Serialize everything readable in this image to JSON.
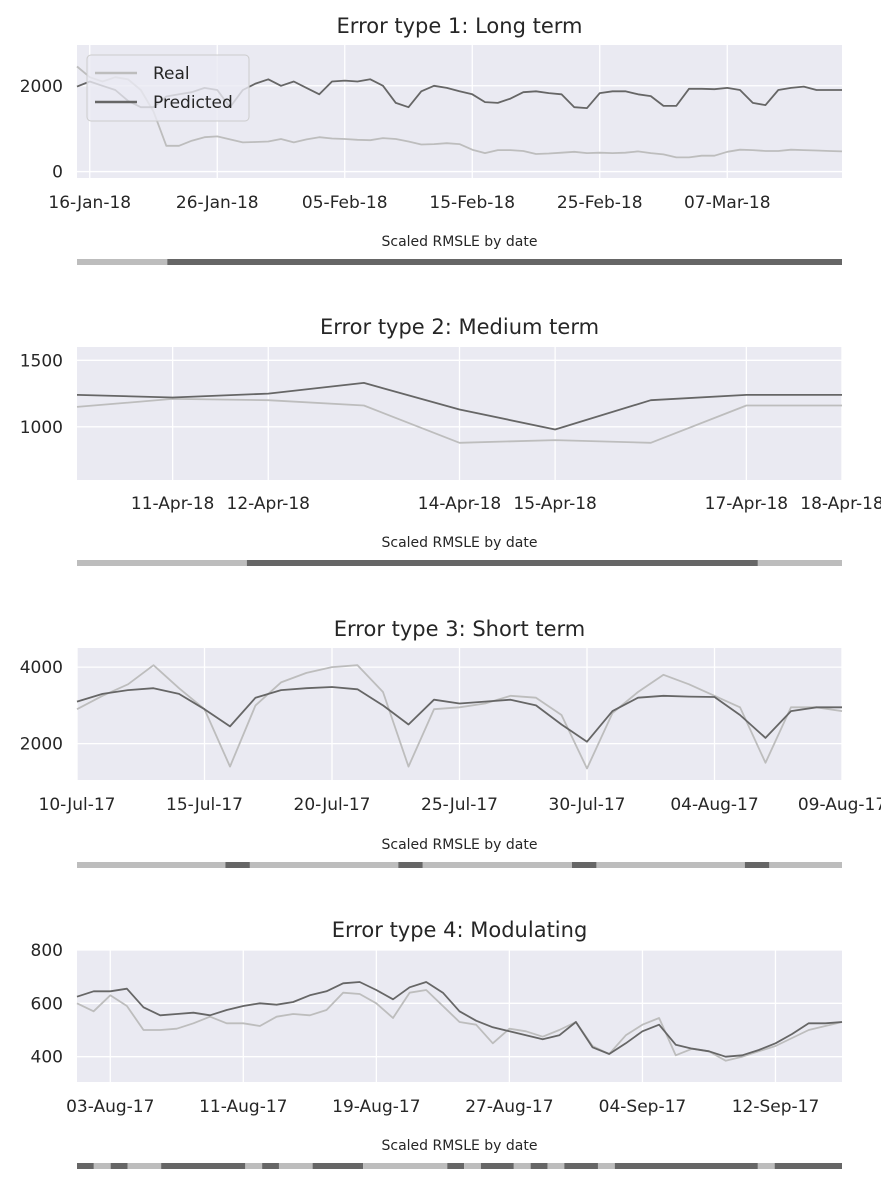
{
  "colors": {
    "axes_bg": "#EAEAF2",
    "grid": "#FFFFFF",
    "real": "#BDBDBD",
    "predicted": "#666666",
    "text": "#262626"
  },
  "strip_label": "Scaled RMSLE by date",
  "chart_data": [
    {
      "type": "line",
      "title": "Error type 1: Long term",
      "xlabel": "",
      "ylabel": "",
      "xlim": [
        "2018-01-15",
        "2018-03-16"
      ],
      "ylim": [
        -150,
        2950
      ],
      "grid": true,
      "legend": {
        "position": "top-left",
        "entries": [
          "Real",
          "Predicted"
        ]
      },
      "xticks": [
        {
          "x": "2018-01-16",
          "label": "16-Jan-18"
        },
        {
          "x": "2018-01-26",
          "label": "26-Jan-18"
        },
        {
          "x": "2018-02-05",
          "label": "05-Feb-18"
        },
        {
          "x": "2018-02-15",
          "label": "15-Feb-18"
        },
        {
          "x": "2018-02-25",
          "label": "25-Feb-18"
        },
        {
          "x": "2018-03-07",
          "label": "07-Mar-18"
        }
      ],
      "yticks": [
        0,
        2000
      ],
      "x": [
        "2018-01-15",
        "2018-01-16",
        "2018-01-17",
        "2018-01-18",
        "2018-01-19",
        "2018-01-20",
        "2018-01-21",
        "2018-01-22",
        "2018-01-23",
        "2018-01-24",
        "2018-01-25",
        "2018-01-26",
        "2018-01-27",
        "2018-01-28",
        "2018-01-29",
        "2018-01-30",
        "2018-01-31",
        "2018-02-01",
        "2018-02-02",
        "2018-02-03",
        "2018-02-04",
        "2018-02-05",
        "2018-02-06",
        "2018-02-07",
        "2018-02-08",
        "2018-02-09",
        "2018-02-10",
        "2018-02-11",
        "2018-02-12",
        "2018-02-13",
        "2018-02-14",
        "2018-02-15",
        "2018-02-16",
        "2018-02-17",
        "2018-02-18",
        "2018-02-19",
        "2018-02-20",
        "2018-02-21",
        "2018-02-22",
        "2018-02-23",
        "2018-02-24",
        "2018-02-25",
        "2018-02-26",
        "2018-02-27",
        "2018-02-28",
        "2018-03-01",
        "2018-03-02",
        "2018-03-03",
        "2018-03-04",
        "2018-03-05",
        "2018-03-06",
        "2018-03-07",
        "2018-03-08",
        "2018-03-09",
        "2018-03-10",
        "2018-03-11",
        "2018-03-12",
        "2018-03-13",
        "2018-03-14",
        "2018-03-15",
        "2018-03-16"
      ],
      "series": [
        {
          "name": "Real",
          "values": [
            2450,
            2200,
            2100,
            2200,
            2150,
            1900,
            1400,
            600,
            600,
            720,
            800,
            820,
            750,
            680,
            690,
            700,
            760,
            680,
            750,
            800,
            770,
            760,
            740,
            730,
            780,
            760,
            700,
            630,
            640,
            660,
            640,
            510,
            430,
            500,
            500,
            480,
            410,
            420,
            440,
            460,
            430,
            440,
            430,
            440,
            470,
            430,
            400,
            330,
            330,
            370,
            370,
            460,
            510,
            500,
            480,
            480,
            510,
            500,
            490,
            480,
            470
          ]
        },
        {
          "name": "Predicted",
          "values": [
            1980,
            2100,
            2000,
            1900,
            1650,
            1500,
            1500,
            1750,
            1800,
            1850,
            1950,
            1900,
            1500,
            1900,
            2050,
            2150,
            2000,
            2100,
            1950,
            1800,
            2100,
            2120,
            2100,
            2150,
            2000,
            1600,
            1500,
            1870,
            2000,
            1950,
            1870,
            1800,
            1620,
            1600,
            1700,
            1850,
            1870,
            1830,
            1800,
            1500,
            1480,
            1830,
            1870,
            1870,
            1800,
            1760,
            1530,
            1530,
            1930,
            1930,
            1920,
            1950,
            1900,
            1600,
            1550,
            1900,
            1950,
            1980,
            1900,
            1900,
            1900
          ]
        }
      ],
      "rmsle_strip": [
        {
          "from": 0,
          "to": 0.118,
          "level": "low"
        },
        {
          "from": 0.118,
          "to": 1.0,
          "level": "high"
        }
      ]
    },
    {
      "type": "line",
      "title": "Error type 2: Medium term",
      "xlabel": "",
      "ylabel": "",
      "xlim": [
        "2018-04-10",
        "2018-04-18"
      ],
      "ylim": [
        600,
        1600
      ],
      "grid": true,
      "xticks": [
        {
          "x": "2018-04-11",
          "label": "11-Apr-18"
        },
        {
          "x": "2018-04-12",
          "label": "12-Apr-18"
        },
        {
          "x": "2018-04-14",
          "label": "14-Apr-18"
        },
        {
          "x": "2018-04-15",
          "label": "15-Apr-18"
        },
        {
          "x": "2018-04-17",
          "label": "17-Apr-18"
        },
        {
          "x": "2018-04-18",
          "label": "18-Apr-18"
        }
      ],
      "yticks": [
        1000,
        1500
      ],
      "x": [
        "2018-04-10",
        "2018-04-11",
        "2018-04-12",
        "2018-04-13",
        "2018-04-14",
        "2018-04-15",
        "2018-04-16",
        "2018-04-17",
        "2018-04-18"
      ],
      "series": [
        {
          "name": "Real",
          "values": [
            1150,
            1210,
            1200,
            1160,
            880,
            900,
            880,
            1160,
            1160
          ]
        },
        {
          "name": "Predicted",
          "values": [
            1240,
            1220,
            1250,
            1330,
            1130,
            980,
            1200,
            1240,
            1240
          ]
        }
      ],
      "rmsle_strip": [
        {
          "from": 0,
          "to": 0.222,
          "level": "low"
        },
        {
          "from": 0.222,
          "to": 0.89,
          "level": "high"
        },
        {
          "from": 0.89,
          "to": 1.0,
          "level": "low"
        }
      ]
    },
    {
      "type": "line",
      "title": "Error type 3: Short term",
      "xlabel": "",
      "ylabel": "",
      "xlim": [
        "2017-07-10",
        "2017-08-09"
      ],
      "ylim": [
        1050,
        4500
      ],
      "grid": true,
      "xticks": [
        {
          "x": "2017-07-10",
          "label": "10-Jul-17"
        },
        {
          "x": "2017-07-15",
          "label": "15-Jul-17"
        },
        {
          "x": "2017-07-20",
          "label": "20-Jul-17"
        },
        {
          "x": "2017-07-25",
          "label": "25-Jul-17"
        },
        {
          "x": "2017-07-30",
          "label": "30-Jul-17"
        },
        {
          "x": "2017-08-04",
          "label": "04-Aug-17"
        },
        {
          "x": "2017-08-09",
          "label": "09-Aug-17"
        }
      ],
      "yticks": [
        2000,
        4000
      ],
      "x": [
        "2017-07-10",
        "2017-07-11",
        "2017-07-12",
        "2017-07-13",
        "2017-07-14",
        "2017-07-15",
        "2017-07-16",
        "2017-07-17",
        "2017-07-18",
        "2017-07-19",
        "2017-07-20",
        "2017-07-21",
        "2017-07-22",
        "2017-07-23",
        "2017-07-24",
        "2017-07-25",
        "2017-07-26",
        "2017-07-27",
        "2017-07-28",
        "2017-07-29",
        "2017-07-30",
        "2017-07-31",
        "2017-08-01",
        "2017-08-02",
        "2017-08-03",
        "2017-08-04",
        "2017-08-05",
        "2017-08-06",
        "2017-08-07",
        "2017-08-08",
        "2017-08-09"
      ],
      "series": [
        {
          "name": "Real",
          "values": [
            2900,
            3250,
            3550,
            4050,
            3450,
            2900,
            1400,
            3000,
            3600,
            3850,
            4000,
            4050,
            3350,
            1400,
            2900,
            2950,
            3050,
            3250,
            3200,
            2750,
            1350,
            2800,
            3350,
            3800,
            3550,
            3250,
            2950,
            1500,
            2950,
            2950,
            2850
          ]
        },
        {
          "name": "Predicted",
          "values": [
            3100,
            3300,
            3400,
            3450,
            3300,
            2900,
            2450,
            3200,
            3400,
            3450,
            3480,
            3420,
            3000,
            2500,
            3150,
            3050,
            3100,
            3150,
            3000,
            2500,
            2050,
            2850,
            3200,
            3250,
            3230,
            3220,
            2750,
            2150,
            2850,
            2950,
            2950
          ]
        }
      ],
      "rmsle_strip": [
        {
          "from": 0,
          "to": 0.194,
          "level": "low"
        },
        {
          "from": 0.194,
          "to": 0.226,
          "level": "high"
        },
        {
          "from": 0.226,
          "to": 0.42,
          "level": "low"
        },
        {
          "from": 0.42,
          "to": 0.452,
          "level": "high"
        },
        {
          "from": 0.452,
          "to": 0.647,
          "level": "low"
        },
        {
          "from": 0.647,
          "to": 0.679,
          "level": "high"
        },
        {
          "from": 0.679,
          "to": 0.873,
          "level": "low"
        },
        {
          "from": 0.873,
          "to": 0.905,
          "level": "high"
        },
        {
          "from": 0.905,
          "to": 1.0,
          "level": "low"
        }
      ]
    },
    {
      "type": "line",
      "title": "Error type 4: Modulating",
      "xlabel": "",
      "ylabel": "",
      "xlim": [
        "2017-08-01",
        "2017-09-16"
      ],
      "ylim": [
        305,
        800
      ],
      "grid": true,
      "xticks": [
        {
          "x": "2017-08-03",
          "label": "03-Aug-17"
        },
        {
          "x": "2017-08-11",
          "label": "11-Aug-17"
        },
        {
          "x": "2017-08-19",
          "label": "19-Aug-17"
        },
        {
          "x": "2017-08-27",
          "label": "27-Aug-17"
        },
        {
          "x": "2017-09-04",
          "label": "04-Sep-17"
        },
        {
          "x": "2017-09-12",
          "label": "12-Sep-17"
        }
      ],
      "yticks": [
        400,
        600,
        800
      ],
      "x": [
        "2017-08-01",
        "2017-08-02",
        "2017-08-03",
        "2017-08-04",
        "2017-08-05",
        "2017-08-06",
        "2017-08-07",
        "2017-08-08",
        "2017-08-09",
        "2017-08-10",
        "2017-08-11",
        "2017-08-12",
        "2017-08-13",
        "2017-08-14",
        "2017-08-15",
        "2017-08-16",
        "2017-08-17",
        "2017-08-18",
        "2017-08-19",
        "2017-08-20",
        "2017-08-21",
        "2017-08-22",
        "2017-08-23",
        "2017-08-24",
        "2017-08-25",
        "2017-08-26",
        "2017-08-27",
        "2017-08-28",
        "2017-08-29",
        "2017-08-30",
        "2017-08-31",
        "2017-09-01",
        "2017-09-02",
        "2017-09-03",
        "2017-09-04",
        "2017-09-05",
        "2017-09-06",
        "2017-09-07",
        "2017-09-08",
        "2017-09-09",
        "2017-09-10",
        "2017-09-11",
        "2017-09-12",
        "2017-09-13",
        "2017-09-14",
        "2017-09-15",
        "2017-09-16"
      ],
      "series": [
        {
          "name": "Real",
          "values": [
            600,
            570,
            630,
            590,
            500,
            500,
            505,
            525,
            550,
            525,
            525,
            515,
            550,
            560,
            555,
            575,
            640,
            635,
            600,
            545,
            640,
            650,
            590,
            530,
            520,
            450,
            505,
            495,
            475,
            500,
            530,
            440,
            410,
            480,
            520,
            545,
            405,
            430,
            420,
            385,
            400,
            420,
            440,
            470,
            500,
            515,
            530
          ]
        },
        {
          "name": "Predicted",
          "values": [
            625,
            645,
            645,
            655,
            585,
            555,
            560,
            565,
            555,
            575,
            590,
            600,
            595,
            605,
            630,
            645,
            675,
            680,
            650,
            615,
            660,
            680,
            640,
            570,
            535,
            510,
            495,
            480,
            465,
            480,
            530,
            435,
            410,
            450,
            495,
            520,
            445,
            430,
            420,
            400,
            405,
            425,
            450,
            485,
            525,
            525,
            530
          ]
        }
      ],
      "rmsle_strip": [
        {
          "from": 0,
          "to": 0.022,
          "level": "high"
        },
        {
          "from": 0.022,
          "to": 0.044,
          "level": "low"
        },
        {
          "from": 0.044,
          "to": 0.066,
          "level": "high"
        },
        {
          "from": 0.066,
          "to": 0.11,
          "level": "low"
        },
        {
          "from": 0.11,
          "to": 0.22,
          "level": "high"
        },
        {
          "from": 0.22,
          "to": 0.242,
          "level": "low"
        },
        {
          "from": 0.242,
          "to": 0.264,
          "level": "high"
        },
        {
          "from": 0.264,
          "to": 0.308,
          "level": "low"
        },
        {
          "from": 0.308,
          "to": 0.374,
          "level": "high"
        },
        {
          "from": 0.374,
          "to": 0.484,
          "level": "low"
        },
        {
          "from": 0.484,
          "to": 0.506,
          "level": "high"
        },
        {
          "from": 0.506,
          "to": 0.528,
          "level": "low"
        },
        {
          "from": 0.528,
          "to": 0.571,
          "level": "high"
        },
        {
          "from": 0.571,
          "to": 0.593,
          "level": "low"
        },
        {
          "from": 0.593,
          "to": 0.615,
          "level": "high"
        },
        {
          "from": 0.615,
          "to": 0.637,
          "level": "low"
        },
        {
          "from": 0.637,
          "to": 0.681,
          "level": "high"
        },
        {
          "from": 0.681,
          "to": 0.703,
          "level": "low"
        },
        {
          "from": 0.703,
          "to": 0.89,
          "level": "high"
        },
        {
          "from": 0.89,
          "to": 0.912,
          "level": "low"
        },
        {
          "from": 0.912,
          "to": 1.0,
          "level": "high"
        }
      ]
    }
  ]
}
